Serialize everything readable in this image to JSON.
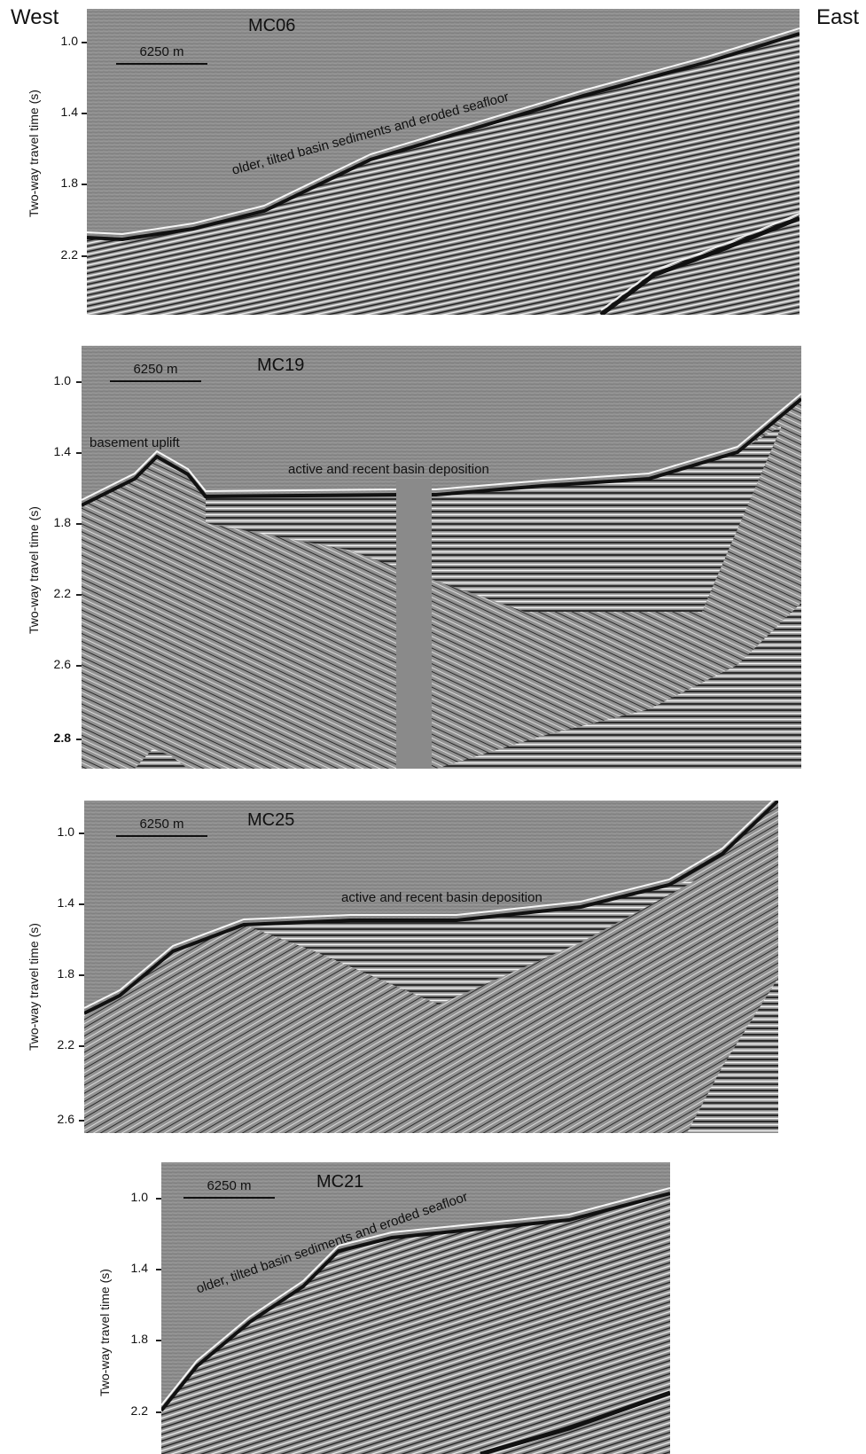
{
  "figure": {
    "west_label": "West",
    "east_label": "East",
    "y_axis_label": "Two-way travel time (s)",
    "scale_label": "6250 m"
  },
  "panels": [
    {
      "id": "MC06",
      "title": "MC06",
      "ticks": [
        "1.0",
        "1.4",
        "1.8",
        "2.2"
      ],
      "annotations": [
        "older, tilted basin sediments and eroded seafloor"
      ]
    },
    {
      "id": "MC19",
      "title": "MC19",
      "ticks": [
        "1.0",
        "1.4",
        "1.8",
        "2.2",
        "2.6",
        "2.8"
      ],
      "annotations": [
        "basement uplift",
        "active and recent basin deposition"
      ]
    },
    {
      "id": "MC25",
      "title": "MC25",
      "ticks": [
        "1.0",
        "1.4",
        "1.8",
        "2.2",
        "2.6"
      ],
      "annotations": [
        "active and recent basin deposition"
      ]
    },
    {
      "id": "MC21",
      "title": "MC21",
      "ticks": [
        "1.0",
        "1.4",
        "1.8",
        "2.2"
      ],
      "annotations": [
        "older, tilted basin sediments and eroded seafloor"
      ]
    }
  ]
}
